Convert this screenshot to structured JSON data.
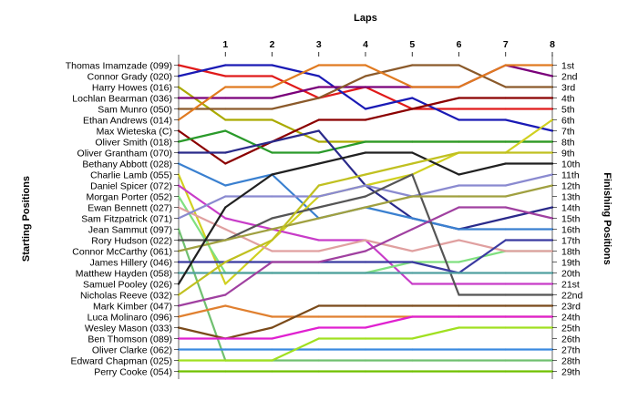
{
  "chart_data": {
    "type": "line",
    "title": "",
    "xlabel": "Laps",
    "ylabel_left": "Starting Positions",
    "ylabel_right": "Finishing Positions",
    "x": [
      0,
      1,
      2,
      3,
      4,
      5,
      6,
      7,
      8
    ],
    "x_ticks": [
      "1",
      "2",
      "3",
      "4",
      "5",
      "6",
      "7",
      "8"
    ],
    "xlim": [
      0,
      8
    ],
    "ylim": [
      1,
      29
    ],
    "y_inverted": true,
    "grid": false,
    "finishing_positions": [
      "1st",
      "2nd",
      "3rd",
      "4th",
      "5th",
      "6th",
      "7th",
      "8th",
      "9th",
      "10th",
      "11th",
      "12th",
      "13th",
      "14th",
      "15th",
      "16th",
      "17th",
      "18th",
      "19th",
      "20th",
      "21st",
      "22nd",
      "23rd",
      "24th",
      "25th",
      "26th",
      "27th",
      "28th",
      "29th"
    ],
    "series": [
      {
        "name": "Thomas Imamzade (099)",
        "color": "#e01a1a",
        "values": [
          1,
          2,
          2,
          4,
          3,
          5,
          5,
          5,
          5
        ]
      },
      {
        "name": "Connor Grady (020)",
        "color": "#1a1ab5",
        "values": [
          2,
          1,
          1,
          2,
          5,
          4,
          6,
          6,
          7
        ]
      },
      {
        "name": "Harry Howes (016)",
        "color": "#aaaa00",
        "values": [
          3,
          6,
          6,
          8,
          8,
          8,
          8,
          8,
          8
        ]
      },
      {
        "name": "Lochlan Bearman (036)",
        "color": "#7a007a",
        "values": [
          4,
          4,
          4,
          3,
          3,
          3,
          3,
          1,
          2
        ]
      },
      {
        "name": "Sam Munro (050)",
        "color": "#8b5a2b",
        "values": [
          5,
          5,
          5,
          4,
          2,
          1,
          1,
          3,
          3
        ]
      },
      {
        "name": "Ethan Andrews (014)",
        "color": "#e07a20",
        "values": [
          6,
          3,
          3,
          1,
          1,
          3,
          3,
          1,
          1
        ]
      },
      {
        "name": "Max Wieteska (C)",
        "color": "#8b0000",
        "values": [
          7,
          10,
          8,
          6,
          6,
          5,
          4,
          4,
          4
        ]
      },
      {
        "name": "Oliver Smith (018)",
        "color": "#2a9a2a",
        "values": [
          8,
          7,
          9,
          9,
          8,
          8,
          8,
          8,
          8
        ]
      },
      {
        "name": "Oliver Grantham (070)",
        "color": "#2a2a8a",
        "values": [
          9,
          9,
          8,
          7,
          12,
          15,
          16,
          15,
          14
        ]
      },
      {
        "name": "Bethany Abbott (028)",
        "color": "#3a80d0",
        "values": [
          10,
          12,
          11,
          15,
          14,
          15,
          16,
          16,
          16
        ]
      },
      {
        "name": "Charlie Lamb (055)",
        "color": "#d0d020",
        "values": [
          11,
          21,
          17,
          13,
          12,
          11,
          9,
          9,
          6
        ]
      },
      {
        "name": "Daniel Spicer (072)",
        "color": "#c83cc8",
        "values": [
          12,
          15,
          16,
          17,
          17,
          21,
          21,
          21,
          21
        ]
      },
      {
        "name": "Morgan Porter (052)",
        "color": "#80e080",
        "values": [
          13,
          20,
          20,
          20,
          20,
          19,
          19,
          18,
          18
        ]
      },
      {
        "name": "Ewan Bennett (027)",
        "color": "#e0a0a0",
        "values": [
          14,
          16,
          18,
          18,
          17,
          18,
          17,
          18,
          18
        ]
      },
      {
        "name": "Sam Fitzpatrick (071)",
        "color": "#8a8ad0",
        "values": [
          15,
          13,
          13,
          13,
          12,
          13,
          12,
          12,
          11
        ]
      },
      {
        "name": "Jean Sammut (097)",
        "color": "#70c070",
        "values": [
          16,
          28,
          28,
          28,
          28,
          28,
          28,
          28,
          28
        ]
      },
      {
        "name": "Rory Hudson (022)",
        "color": "#555555",
        "values": [
          17,
          17,
          15,
          14,
          13,
          11,
          22,
          22,
          22
        ]
      },
      {
        "name": "Connor McCarthy (061)",
        "color": "#a0a040",
        "values": [
          18,
          17,
          16,
          15,
          14,
          13,
          13,
          13,
          12
        ]
      },
      {
        "name": "James Hillery (046)",
        "color": "#3a3aa0",
        "values": [
          19,
          19,
          19,
          19,
          19,
          19,
          20,
          17,
          17
        ]
      },
      {
        "name": "Matthew Hayden (058)",
        "color": "#50a0a0",
        "values": [
          20,
          20,
          20,
          20,
          20,
          20,
          20,
          20,
          20
        ]
      },
      {
        "name": "Samuel Pooley (026)",
        "color": "#202020",
        "values": [
          21,
          14,
          11,
          10,
          9,
          9,
          11,
          10,
          10
        ]
      },
      {
        "name": "Nicholas Reeve (032)",
        "color": "#c0c020",
        "values": [
          22,
          19,
          17,
          12,
          11,
          10,
          9,
          9,
          9
        ]
      },
      {
        "name": "Mark Kimber (047)",
        "color": "#a040a0",
        "values": [
          23,
          22,
          19,
          19,
          18,
          16,
          14,
          14,
          15
        ]
      },
      {
        "name": "Luca Molinaro (096)",
        "color": "#e08030",
        "values": [
          24,
          23,
          24,
          24,
          24,
          24,
          24,
          24,
          24
        ]
      },
      {
        "name": "Wesley Mason (033)",
        "color": "#7a4a1a",
        "values": [
          25,
          26,
          25,
          23,
          23,
          23,
          23,
          23,
          23
        ]
      },
      {
        "name": "Ben Thomson (089)",
        "color": "#e020d0",
        "values": [
          26,
          26,
          26,
          25,
          25,
          24,
          24,
          24,
          24
        ]
      },
      {
        "name": "Oliver Clarke (062)",
        "color": "#3a8ae0",
        "values": [
          27,
          27,
          27,
          27,
          27,
          27,
          27,
          27,
          27
        ]
      },
      {
        "name": "Edward Chapman (025)",
        "color": "#a0e020",
        "values": [
          28,
          28,
          28,
          26,
          26,
          26,
          25,
          25,
          25
        ]
      },
      {
        "name": "Perry Cooke (054)",
        "color": "#70c000",
        "values": [
          29,
          29,
          29,
          29,
          29,
          29,
          29,
          29,
          29
        ]
      }
    ]
  }
}
